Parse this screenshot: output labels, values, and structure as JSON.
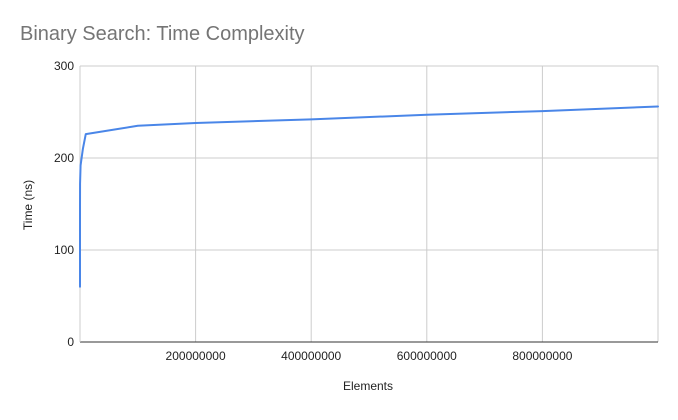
{
  "chart_data": {
    "type": "line",
    "title": "Binary Search: Time Complexity",
    "xlabel": "Elements",
    "ylabel": "Time (ns)",
    "xlim": [
      0,
      1000000000
    ],
    "ylim": [
      0,
      300
    ],
    "x_ticks": [
      200000000,
      400000000,
      600000000,
      800000000
    ],
    "x_tick_labels": [
      "200000000",
      "400000000",
      "600000000",
      "800000000"
    ],
    "y_ticks": [
      0,
      100,
      200,
      300
    ],
    "y_tick_labels": [
      "0",
      "100",
      "200",
      "300"
    ],
    "grid": true,
    "legend": "none",
    "colors": {
      "series": "#4a86e8",
      "grid": "#cccccc",
      "axis": "#333333",
      "title": "#757575",
      "text": "#222222"
    },
    "series": [
      {
        "x": [
          10,
          100,
          1000,
          10000,
          100000,
          1000000,
          5000000,
          10000000,
          100000000,
          200000000,
          400000000,
          600000000,
          800000000,
          1000000000
        ],
        "values": [
          60,
          98,
          120,
          148,
          172,
          192,
          210,
          226,
          235,
          238,
          242,
          247,
          251,
          256
        ]
      }
    ]
  }
}
